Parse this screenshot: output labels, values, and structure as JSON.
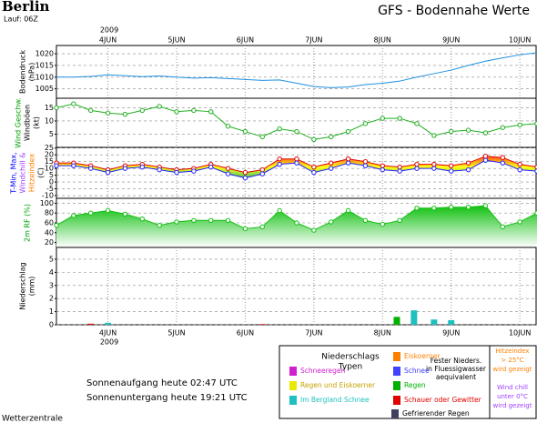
{
  "header": {
    "city": "Berlin",
    "run": "Lauf: 06Z",
    "title": "GFS - Bodennahe Werte"
  },
  "time_axis": {
    "year": "2009",
    "xlim": [
      -18,
      150
    ],
    "xticks": [
      {
        "value": 0,
        "label": "4JUN"
      },
      {
        "value": 24,
        "label": "5JUN"
      },
      {
        "value": 48,
        "label": "6JUN"
      },
      {
        "value": 72,
        "label": "7JUN"
      },
      {
        "value": 96,
        "label": "8JUN"
      },
      {
        "value": 120,
        "label": "9JUN"
      },
      {
        "value": 144,
        "label": "10JUN"
      }
    ]
  },
  "chart_data": [
    {
      "type": "line",
      "ylabel": [
        {
          "text": "Bodendruck",
          "color": "#000000"
        },
        {
          "text": "(hPa)",
          "color": "#000000"
        }
      ],
      "ylim": [
        1001,
        1023.5
      ],
      "yticks": [
        1005,
        1010,
        1015,
        1020
      ],
      "grid": true,
      "markers": false,
      "x": [
        -18,
        -12,
        -6,
        0,
        6,
        12,
        18,
        24,
        30,
        36,
        42,
        48,
        54,
        60,
        66,
        72,
        78,
        84,
        90,
        96,
        102,
        108,
        114,
        120,
        126,
        132,
        138,
        144,
        150
      ],
      "series": [
        {
          "color": "#1e90e0",
          "values": [
            1010,
            1010,
            1010.3,
            1011,
            1010.6,
            1010.2,
            1010.5,
            1010,
            1009.6,
            1009.8,
            1009.4,
            1009,
            1008.6,
            1008.8,
            1007.4,
            1006,
            1005.5,
            1005.8,
            1006.8,
            1007.4,
            1008.3,
            1010,
            1011.5,
            1013,
            1015,
            1016.8,
            1018.2,
            1019.5,
            1020.4
          ]
        }
      ]
    },
    {
      "type": "line",
      "ylabel": [
        {
          "text": "Wind Geschw.",
          "color": "#00a000"
        },
        {
          "text": "Windböen",
          "color": "#000000"
        },
        {
          "text": "(kt)",
          "color": "#000000"
        }
      ],
      "ylim": [
        0,
        18.6
      ],
      "yticks": [
        5,
        10,
        15
      ],
      "grid": true,
      "markers": true,
      "x": [
        -18,
        -12,
        -6,
        0,
        6,
        12,
        18,
        24,
        30,
        36,
        42,
        48,
        54,
        60,
        66,
        72,
        78,
        84,
        90,
        96,
        102,
        108,
        114,
        120,
        126,
        132,
        138,
        144,
        150
      ],
      "series": [
        {
          "color": "#20b020",
          "values": [
            15,
            16.5,
            14,
            13,
            12.5,
            14,
            15.5,
            13.5,
            14,
            13.5,
            8,
            6,
            4,
            7,
            6,
            3,
            4,
            6,
            9,
            11,
            11,
            9,
            4.5,
            6,
            6.5,
            5.5,
            7.5,
            8.5,
            9
          ]
        }
      ]
    },
    {
      "type": "band",
      "ylabel": [
        {
          "text": "T-Min, Max,",
          "color": "#0000ff"
        },
        {
          "text": "Windchill &",
          "color": "#a040ff"
        },
        {
          "text": "Hitzeindex",
          "color": "#ff8000"
        },
        {
          "text": "(C)",
          "color": "#000000"
        }
      ],
      "ylim": [
        -12,
        25.5
      ],
      "yticks": [
        25,
        20,
        15,
        10,
        5,
        0,
        -5,
        -10
      ],
      "grid": true,
      "markers": true,
      "x": [
        -18,
        -12,
        -6,
        0,
        6,
        12,
        18,
        24,
        30,
        36,
        42,
        48,
        54,
        60,
        66,
        72,
        78,
        84,
        90,
        96,
        102,
        108,
        114,
        120,
        126,
        132,
        138,
        144,
        150
      ],
      "series": [
        {
          "color": "#e00000",
          "values": [
            14,
            14,
            12,
            9,
            12,
            13,
            11,
            9,
            10,
            13,
            10,
            7,
            9,
            17,
            17,
            11,
            14,
            17,
            15,
            12,
            11,
            13,
            13,
            12,
            14,
            19,
            18,
            13,
            11
          ]
        },
        {
          "color": "#2020ff",
          "values": [
            12,
            12,
            10,
            7,
            10,
            11,
            9,
            7,
            8,
            11,
            6,
            3,
            6,
            13,
            14,
            7,
            10,
            14,
            12,
            9,
            8,
            10,
            10,
            8,
            9,
            16,
            14,
            9,
            8
          ]
        }
      ]
    },
    {
      "type": "area",
      "ylabel": [
        {
          "text": "2m RF (%)",
          "color": "#00a000"
        }
      ],
      "ylim": [
        10,
        110
      ],
      "yticks": [
        100,
        80,
        60,
        40,
        20
      ],
      "grid": true,
      "markers": true,
      "x": [
        -18,
        -12,
        -6,
        0,
        6,
        12,
        18,
        24,
        30,
        36,
        42,
        48,
        54,
        60,
        66,
        72,
        78,
        84,
        90,
        96,
        102,
        108,
        114,
        120,
        126,
        132,
        138,
        144,
        150
      ],
      "series": [
        {
          "color": "#10c010",
          "values": [
            55,
            75,
            80,
            85,
            78,
            68,
            55,
            62,
            65,
            65,
            65,
            48,
            52,
            85,
            60,
            45,
            62,
            85,
            65,
            57,
            65,
            90,
            90,
            92,
            92,
            95,
            52,
            62,
            80
          ]
        }
      ]
    },
    {
      "type": "bar",
      "ylabel": [
        {
          "text": "Niederschlag",
          "color": "#000000"
        },
        {
          "text": "(mm)",
          "color": "#000000"
        }
      ],
      "ylim": [
        0,
        5.9
      ],
      "yticks": [
        0,
        1,
        2,
        3,
        4,
        5
      ],
      "grid": true,
      "x": [
        -6,
        0,
        54,
        101,
        107,
        114,
        120
      ],
      "values": [
        0.08,
        0.15,
        0.05,
        0.6,
        1.1,
        0.4,
        0.35
      ],
      "colors": [
        "#e00000",
        "#20c0c0",
        "#e00000",
        "#00b000",
        "#20c0c0",
        "#20c0c0",
        "#20c0c0"
      ]
    }
  ],
  "legend": {
    "title": [
      "Niederschlags",
      "Typen"
    ],
    "items": [
      {
        "label": "Schneeregen",
        "color": "#d020d0"
      },
      {
        "label": "Regen und Eiskoerner",
        "color": "#e8e800"
      },
      {
        "label": "Im Bergland Schnee",
        "color": "#20c0c0"
      },
      {
        "label": "Eiskoerner",
        "color": "#ff8000"
      },
      {
        "label": "Schnee",
        "color": "#4040ff"
      },
      {
        "label": "Regen",
        "color": "#00b000"
      },
      {
        "label": "Schauer oder Gewitter",
        "color": "#e00000"
      },
      {
        "label": "Gefrierender Regen",
        "color": "#404060"
      }
    ],
    "note": [
      "Fester Nieders.",
      "in Fluessigwasser",
      "aequivalent"
    ],
    "heat": [
      "Hitzeindex",
      "> 25°C",
      "wird gezeigt"
    ],
    "chill": [
      "Wind chill",
      "unter 0°C",
      "wird gezeigt"
    ]
  },
  "sun": [
    "Sonnenaufgang heute 02:47 UTC",
    "Sonnenuntergang heute 19:21 UTC"
  ],
  "footer": "Wetterzentrale"
}
